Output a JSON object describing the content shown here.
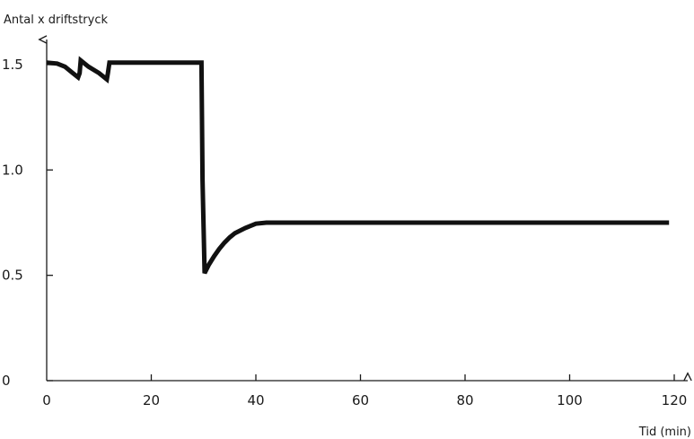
{
  "chart_data": {
    "type": "line",
    "title": "",
    "ylabel": "Antal x driftstryck",
    "xlabel": "Tid (min)",
    "xlim": [
      0,
      120
    ],
    "ylim": [
      0,
      1.5
    ],
    "x_ticks": [
      0,
      20,
      40,
      60,
      80,
      100,
      120
    ],
    "x_tick_labels": [
      "0",
      "20",
      "40",
      "60",
      "80",
      "100",
      "120"
    ],
    "y_ticks": [
      0,
      0.5,
      1.0,
      1.5
    ],
    "y_tick_labels": [
      "0",
      "0.5",
      "1.0",
      "1.5"
    ],
    "grid": false,
    "line_color": "#111111",
    "series": [
      {
        "x": [
          0,
          2,
          3.5,
          5,
          6,
          6.3,
          6.5,
          8,
          10,
          11.5,
          11.7,
          12,
          15,
          20,
          25,
          29.6,
          29.8,
          30.2,
          31,
          32,
          33,
          34,
          35,
          36,
          38,
          40,
          42,
          50,
          70,
          90,
          110,
          119
        ],
        "y": [
          1.51,
          1.505,
          1.49,
          1.46,
          1.44,
          1.46,
          1.52,
          1.49,
          1.46,
          1.43,
          1.46,
          1.51,
          1.51,
          1.51,
          1.51,
          1.51,
          0.95,
          0.51,
          0.55,
          0.59,
          0.625,
          0.655,
          0.68,
          0.7,
          0.725,
          0.745,
          0.75,
          0.75,
          0.75,
          0.75,
          0.75,
          0.75
        ]
      }
    ]
  }
}
